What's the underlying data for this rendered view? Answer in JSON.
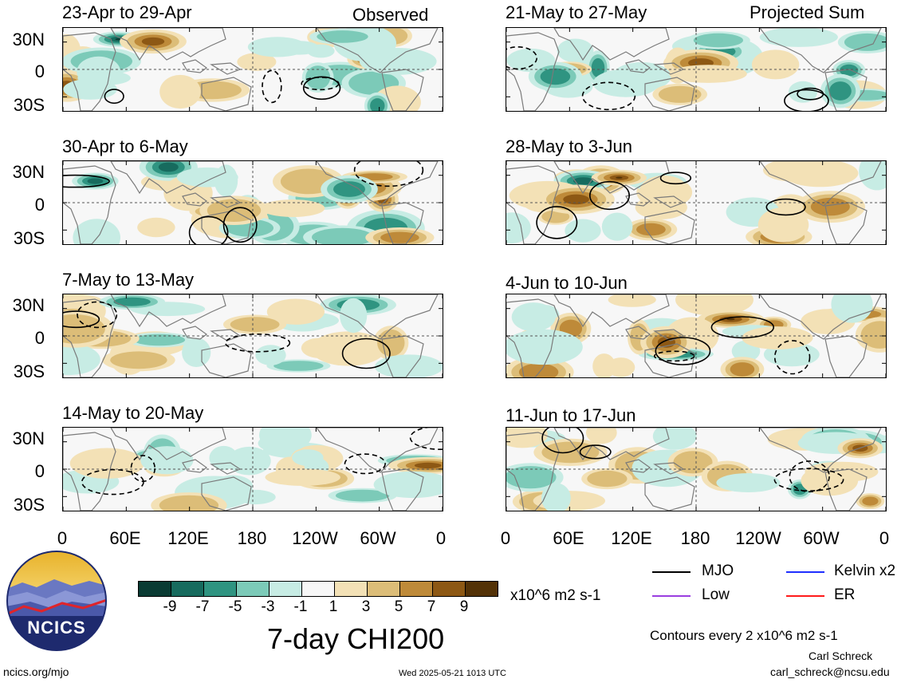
{
  "headers": {
    "observed": "Observed",
    "projected": "Projected Sum"
  },
  "lat_labels": [
    "30N",
    "0",
    "30S"
  ],
  "lon_labels": [
    "0",
    "60E",
    "120E",
    "180",
    "120W",
    "60W",
    "0"
  ],
  "panels": [
    {
      "title": "23-Apr to 29-Apr"
    },
    {
      "title": "21-May to 27-May"
    },
    {
      "title": "30-Apr to 6-May"
    },
    {
      "title": "28-May to 3-Jun"
    },
    {
      "title": "7-May to 13-May"
    },
    {
      "title": "4-Jun to 10-Jun"
    },
    {
      "title": "14-May to 20-May"
    },
    {
      "title": "11-Jun to 17-Jun"
    }
  ],
  "colorbar": {
    "labels": [
      "-9",
      "-7",
      "-5",
      "-3",
      "-1",
      "1",
      "3",
      "5",
      "7",
      "9"
    ],
    "colors": [
      "#0a3b33",
      "#176b5e",
      "#2f9481",
      "#7ccab8",
      "#c7ece4",
      "#f7f7f7",
      "#f3e1b6",
      "#dcbd78",
      "#be8a39",
      "#8d5814",
      "#533207"
    ],
    "units": "x10^6 m2 s-1"
  },
  "title": "7-day CHI200",
  "legend": [
    {
      "label": "MJO",
      "color": "#000000"
    },
    {
      "label": "Kelvin x2",
      "color": "#1f2fff"
    },
    {
      "label": "Low",
      "color": "#9a3ee0"
    },
    {
      "label": "ER",
      "color": "#ff1a1a"
    }
  ],
  "contour_note": "Contours every 2 x10^6 m2 s-1",
  "logo_text": "NCICS",
  "footer": {
    "url": "ncics.org/mjo",
    "timestamp": "Wed 2025-05-21 1013 UTC",
    "author": "Carl Schreck",
    "email": "carl_schreck@ncsu.edu"
  }
}
